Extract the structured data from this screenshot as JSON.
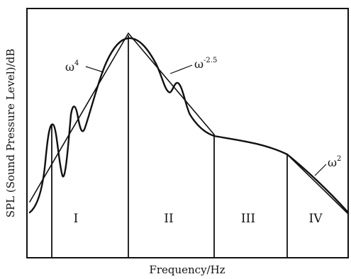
{
  "diagram": {
    "x_axis_label": "Frequency/Hz",
    "y_axis_label": "SPL (Sound Pressure Level)/dB",
    "regions": [
      "I",
      "II",
      "III",
      "IV"
    ],
    "annotations": [
      {
        "base": "ω",
        "exponent": "4"
      },
      {
        "base": "ω",
        "exponent": "-2.5"
      },
      {
        "base": "ω",
        "exponent": "2"
      }
    ]
  }
}
